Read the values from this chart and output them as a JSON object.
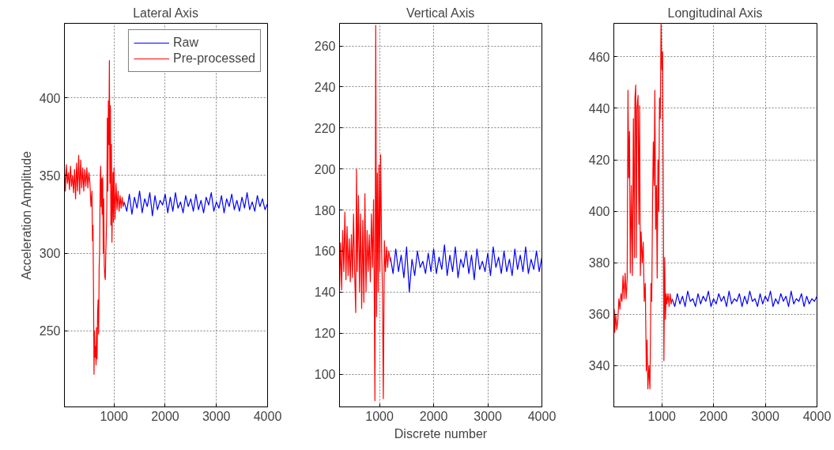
{
  "chart_data": [
    {
      "type": "line",
      "title": "Lateral Axis",
      "ylabel": "Acceleration Amplitude",
      "xlim": [
        32,
        4000
      ],
      "ylim": [
        201,
        448
      ],
      "xticks": [
        1000,
        2000,
        3000,
        4000
      ],
      "yticks": [
        250,
        300,
        350,
        400
      ],
      "grid": true,
      "legend": "top right",
      "series": [
        {
          "name": "Raw",
          "color": "#0000ff",
          "x": [
            1200,
            1250,
            1300,
            1350,
            1400,
            1450,
            1500,
            1550,
            1600,
            1650,
            1700,
            1750,
            1800,
            1850,
            1900,
            1950,
            2000,
            2050,
            2100,
            2150,
            2200,
            2250,
            2300,
            2350,
            2400,
            2450,
            2500,
            2550,
            2600,
            2650,
            2700,
            2750,
            2800,
            2850,
            2900,
            2950,
            3000,
            3050,
            3100,
            3150,
            3200,
            3250,
            3300,
            3350,
            3400,
            3450,
            3500,
            3550,
            3600,
            3650,
            3700,
            3750,
            3800,
            3850,
            3900,
            3950,
            4000
          ],
          "values": [
            333,
            327,
            338,
            325,
            336,
            329,
            340,
            326,
            335,
            330,
            339,
            324,
            337,
            328,
            334,
            331,
            338,
            326,
            336,
            327,
            339,
            329,
            333,
            326,
            337,
            330,
            335,
            327,
            338,
            328,
            334,
            326,
            336,
            331,
            339,
            327,
            333,
            329,
            337,
            326,
            335,
            330,
            338,
            328,
            334,
            327,
            336,
            329,
            339,
            328,
            333,
            327,
            337,
            330,
            335,
            328,
            332
          ]
        },
        {
          "name": "Pre-processed",
          "color": "#ff0000",
          "x": [
            32,
            50,
            70,
            90,
            110,
            130,
            150,
            170,
            190,
            210,
            230,
            250,
            270,
            290,
            310,
            330,
            350,
            370,
            390,
            410,
            430,
            450,
            470,
            490,
            510,
            530,
            550,
            570,
            580,
            590,
            600,
            610,
            620,
            630,
            640,
            650,
            660,
            670,
            680,
            690,
            700,
            710,
            720,
            730,
            740,
            750,
            760,
            770,
            780,
            790,
            800,
            810,
            820,
            830,
            840,
            850,
            860,
            870,
            880,
            890,
            900,
            910,
            920,
            930,
            940,
            950,
            960,
            970,
            980,
            990,
            1000,
            1020,
            1040,
            1060,
            1080,
            1100,
            1120,
            1140,
            1160,
            1180,
            1200
          ],
          "values": [
            355,
            340,
            357,
            345,
            352,
            341,
            356,
            343,
            350,
            339,
            354,
            335,
            358,
            340,
            363,
            338,
            360,
            342,
            355,
            340,
            354,
            343,
            355,
            342,
            352,
            345,
            330,
            340,
            308,
            318,
            275,
            222,
            250,
            233,
            240,
            228,
            252,
            232,
            262,
            270,
            248,
            290,
            302,
            345,
            356,
            330,
            348,
            325,
            349,
            300,
            335,
            292,
            285,
            283,
            300,
            312,
            330,
            387,
            340,
            398,
            370,
            424,
            345,
            395,
            318,
            370,
            307,
            330,
            352,
            320,
            355,
            322,
            345,
            328,
            340,
            327,
            337,
            329,
            336,
            330,
            333
          ]
        }
      ]
    },
    {
      "type": "line",
      "title": "Vertical Axis",
      "xlabel": "Discrete number",
      "xlim": [
        261,
        4000
      ],
      "ylim": [
        84,
        271
      ],
      "xticks": [
        1000,
        2000,
        3000,
        4000
      ],
      "yticks": [
        100,
        120,
        140,
        160,
        180,
        200,
        220,
        240,
        260
      ],
      "grid": true,
      "series": [
        {
          "color": "#0000ff",
          "x": [
            1200,
            1250,
            1300,
            1350,
            1400,
            1450,
            1500,
            1550,
            1600,
            1650,
            1700,
            1750,
            1800,
            1850,
            1900,
            1950,
            2000,
            2050,
            2100,
            2150,
            2200,
            2250,
            2300,
            2350,
            2400,
            2450,
            2500,
            2550,
            2600,
            2650,
            2700,
            2750,
            2800,
            2850,
            2900,
            2950,
            3000,
            3050,
            3100,
            3150,
            3200,
            3250,
            3300,
            3350,
            3400,
            3450,
            3500,
            3550,
            3600,
            3650,
            3700,
            3750,
            3800,
            3850,
            3900,
            3950,
            4000
          ],
          "values": [
            157,
            149,
            161,
            150,
            158,
            147,
            162,
            140,
            156,
            148,
            160,
            152,
            155,
            149,
            159,
            150,
            161,
            149,
            157,
            151,
            163,
            148,
            158,
            150,
            162,
            147,
            156,
            152,
            160,
            149,
            158,
            146,
            161,
            151,
            155,
            150,
            159,
            148,
            162,
            152,
            157,
            149,
            160,
            150,
            156,
            148,
            161,
            151,
            158,
            150,
            162,
            149,
            156,
            151,
            160,
            150,
            157
          ]
        },
        {
          "color": "#ff0000",
          "x": [
            261,
            280,
            300,
            320,
            340,
            360,
            380,
            400,
            420,
            440,
            460,
            480,
            500,
            520,
            540,
            560,
            575,
            590,
            610,
            630,
            650,
            670,
            690,
            710,
            730,
            750,
            770,
            790,
            810,
            830,
            850,
            870,
            890,
            905,
            915,
            930,
            945,
            960,
            975,
            990,
            1005,
            1020,
            1040,
            1055,
            1070,
            1090,
            1110,
            1130,
            1150,
            1170,
            1200
          ],
          "values": [
            142,
            164,
            141,
            170,
            150,
            179,
            146,
            172,
            148,
            166,
            145,
            168,
            147,
            178,
            150,
            130,
            200,
            150,
            187,
            140,
            178,
            132,
            175,
            135,
            188,
            140,
            170,
            150,
            168,
            145,
            178,
            152,
            185,
            130,
            87,
            270,
            128,
            198,
            140,
            202,
            150,
            207,
            160,
            140,
            88,
            165,
            150,
            162,
            152,
            160,
            155
          ]
        }
      ]
    },
    {
      "type": "line",
      "title": "Longitudinal Axis",
      "xlim": [
        72,
        4000
      ],
      "ylim": [
        324,
        473
      ],
      "xticks": [
        1000,
        2000,
        3000,
        4000
      ],
      "yticks": [
        340,
        360,
        380,
        400,
        420,
        440,
        460
      ],
      "grid": true,
      "series": [
        {
          "color": "#0000ff",
          "x": [
            1200,
            1250,
            1300,
            1350,
            1400,
            1450,
            1500,
            1550,
            1600,
            1650,
            1700,
            1750,
            1800,
            1850,
            1900,
            1950,
            2000,
            2050,
            2100,
            2150,
            2200,
            2250,
            2300,
            2350,
            2400,
            2450,
            2500,
            2550,
            2600,
            2650,
            2700,
            2750,
            2800,
            2850,
            2900,
            2950,
            3000,
            3050,
            3100,
            3150,
            3200,
            3250,
            3300,
            3350,
            3400,
            3450,
            3500,
            3550,
            3600,
            3650,
            3700,
            3750,
            3800,
            3850,
            3900,
            3950,
            4000
          ],
          "values": [
            366,
            363,
            368,
            364,
            367,
            363,
            369,
            365,
            366,
            363,
            368,
            364,
            367,
            365,
            369,
            363,
            366,
            364,
            368,
            365,
            367,
            363,
            369,
            364,
            366,
            365,
            368,
            363,
            367,
            364,
            369,
            365,
            366,
            363,
            368,
            364,
            367,
            365,
            369,
            363,
            366,
            364,
            368,
            365,
            367,
            363,
            369,
            364,
            366,
            365,
            368,
            363,
            367,
            364,
            366,
            365,
            367
          ]
        },
        {
          "color": "#ff0000",
          "x": [
            80,
            90,
            110,
            130,
            150,
            170,
            190,
            210,
            230,
            250,
            270,
            290,
            310,
            330,
            345,
            360,
            375,
            390,
            410,
            430,
            450,
            470,
            480,
            495,
            505,
            520,
            540,
            555,
            570,
            585,
            600,
            620,
            640,
            660,
            680,
            700,
            715,
            730,
            750,
            770,
            790,
            805,
            820,
            835,
            850,
            865,
            880,
            895,
            910,
            925,
            940,
            955,
            970,
            985,
            1000,
            1015,
            1030,
            1040,
            1055,
            1070,
            1085,
            1100,
            1120,
            1140,
            1160,
            1180,
            1200
          ],
          "values": [
            362,
            353,
            360,
            354,
            358,
            366,
            362,
            368,
            365,
            375,
            366,
            376,
            366,
            374,
            447,
            413,
            431,
            376,
            410,
            375,
            436,
            382,
            444,
            449,
            382,
            440,
            445,
            395,
            441,
            375,
            392,
            380,
            388,
            365,
            372,
            338,
            350,
            331,
            340,
            331,
            372,
            365,
            403,
            427,
            410,
            447,
            393,
            410,
            374,
            420,
            400,
            444,
            436,
            473,
            455,
            462,
            400,
            342,
            382,
            358,
            368,
            364,
            368,
            363,
            368,
            364,
            366
          ]
        }
      ]
    }
  ]
}
